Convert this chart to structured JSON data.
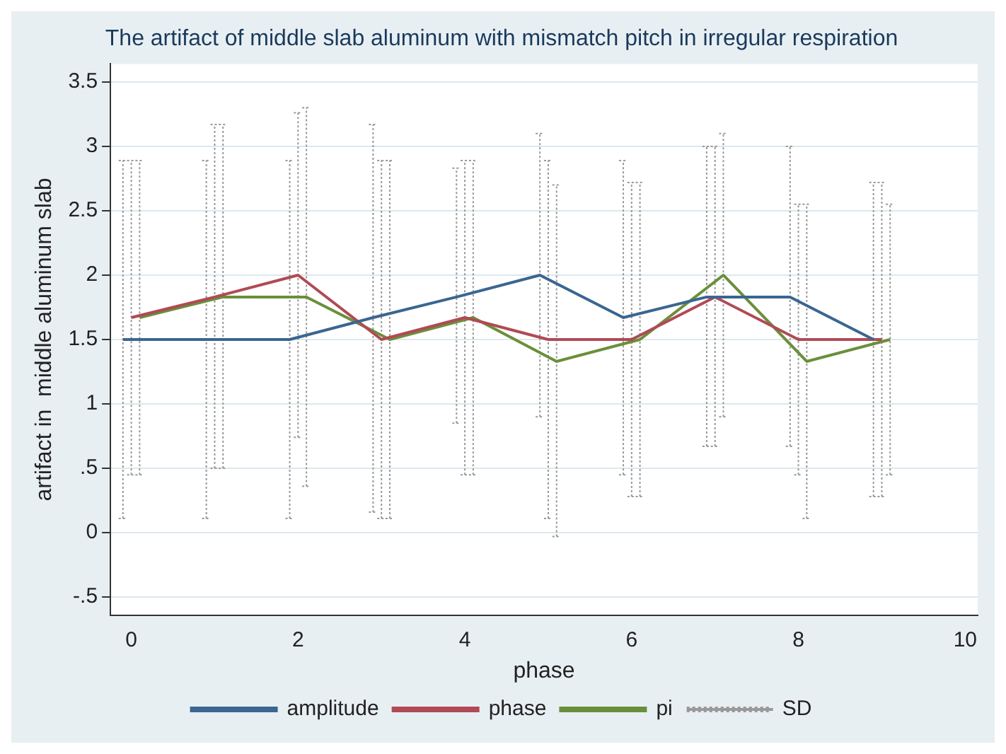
{
  "chart_data": {
    "type": "line",
    "title": "The artifact of middle slab aluminum with mismatch pitch in irregular respiration",
    "xlabel": "phase",
    "ylabel": "artifact in  middle aluminum slab",
    "xlim": [
      -0.25,
      10.15
    ],
    "xticks": [
      0,
      2,
      4,
      6,
      8,
      10
    ],
    "ylim": [
      -0.64,
      3.64
    ],
    "yticks": [
      {
        "value": -0.5,
        "label": "-.5"
      },
      0,
      {
        "value": 0.5,
        "label": ".5"
      },
      1,
      1.5,
      2,
      2.5,
      3,
      3.5
    ],
    "grid": "y",
    "legend": "bottom",
    "marker": "none",
    "series": [
      {
        "name": "amplitude",
        "color": "#3a6690",
        "x": [
          -0.1,
          0.9,
          1.9,
          2.9,
          3.9,
          4.9,
          5.9,
          6.9,
          7.9,
          8.9
        ],
        "values": [
          1.5,
          1.5,
          1.5,
          1.67,
          1.83,
          2,
          1.67,
          1.83,
          1.83,
          1.5
        ],
        "errors": [
          [
            0.11,
            2.89
          ],
          [
            0.11,
            2.89
          ],
          [
            0.11,
            2.89
          ],
          [
            0.16,
            3.17
          ],
          [
            0.85,
            2.83
          ],
          [
            0.9,
            3.1
          ],
          [
            0.45,
            2.89
          ],
          [
            0.67,
            3.0
          ],
          [
            0.67,
            3.0
          ],
          [
            0.28,
            2.72
          ]
        ]
      },
      {
        "name": "phase",
        "color": "#b04a55",
        "x": [
          0,
          1,
          2,
          3,
          4,
          5,
          6,
          7,
          8,
          9
        ],
        "values": [
          1.67,
          1.83,
          2,
          1.5,
          1.67,
          1.5,
          1.5,
          1.83,
          1.5,
          1.5
        ],
        "errors": [
          [
            0.45,
            2.89
          ],
          [
            0.5,
            3.17
          ],
          [
            0.74,
            3.26
          ],
          [
            0.11,
            2.89
          ],
          [
            0.45,
            2.89
          ],
          [
            0.11,
            2.89
          ],
          [
            0.28,
            2.72
          ],
          [
            0.67,
            3.0
          ],
          [
            0.45,
            2.55
          ],
          [
            0.28,
            2.72
          ]
        ]
      },
      {
        "name": "pi",
        "color": "#6a8f3a",
        "x": [
          0.1,
          1.1,
          2.1,
          3.1,
          4.1,
          5.1,
          6.1,
          7.1,
          8.1,
          9.1
        ],
        "values": [
          1.67,
          1.83,
          1.83,
          1.5,
          1.67,
          1.33,
          1.5,
          2,
          1.33,
          1.5
        ],
        "errors": [
          [
            0.45,
            2.89
          ],
          [
            0.5,
            3.17
          ],
          [
            0.36,
            3.3
          ],
          [
            0.11,
            2.89
          ],
          [
            0.45,
            2.89
          ],
          [
            -0.03,
            2.7
          ],
          [
            0.28,
            2.72
          ],
          [
            0.9,
            3.1
          ],
          [
            0.11,
            2.55
          ],
          [
            0.45,
            2.55
          ]
        ]
      },
      {
        "name": "SD",
        "color": "#999999",
        "line_style": "dotted"
      }
    ]
  }
}
